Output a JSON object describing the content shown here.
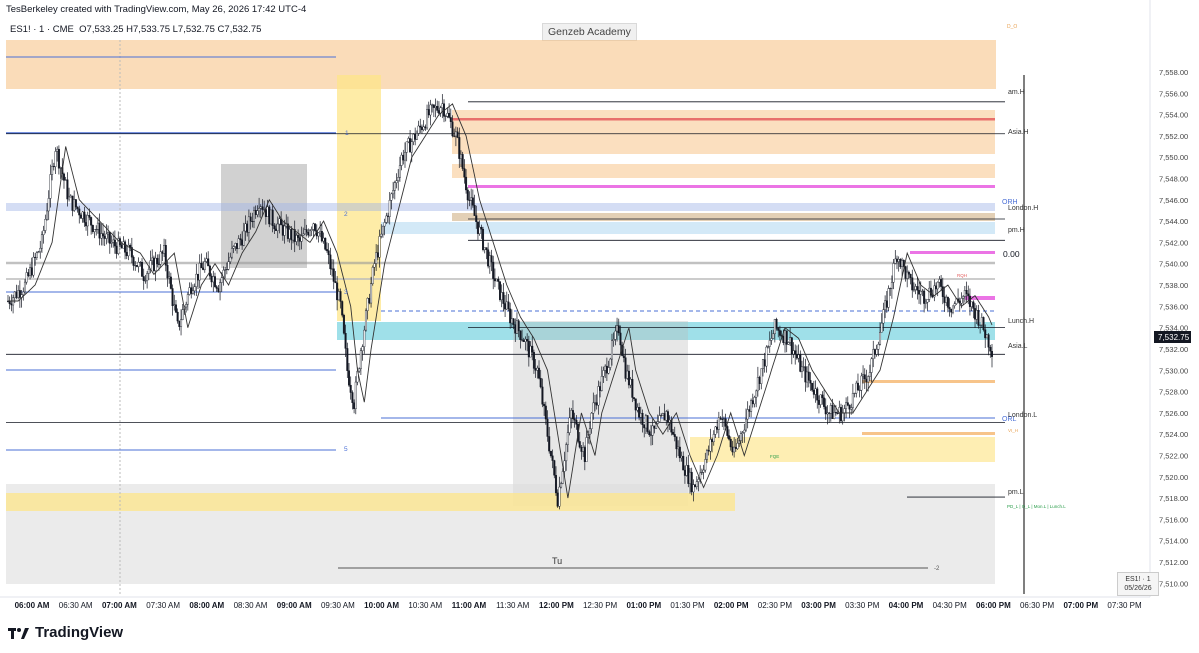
{
  "header": {
    "credit": "TesBerkeley created with TradingView.com, May 26, 2026 17:42 UTC-4",
    "symbol": "ES1! · 1 · CME",
    "ohlc": "O7,533.25  H7,533.75  L7,532.75  C7,532.75",
    "watermark": "Genzeb Academy",
    "brand": "TradingView"
  },
  "colors": {
    "candle": "#131722",
    "orange_zone": "#f7c48a",
    "yellow_zone": "#fde58a",
    "cyan_zone": "#7fd6e2",
    "gray_zone": "#b9b9b9",
    "magenta": "#e85ce0",
    "red": "#e45c5c",
    "blue_line": "#4a6fd6"
  },
  "chart_data": {
    "type": "candlestick",
    "timeframe": "1",
    "title": "ES1! · 1 · CME",
    "last_price_label": "7,532.75",
    "ylim": [
      7509,
      7561
    ],
    "y_ticks": [
      "7,558.00",
      "7,556.00",
      "7,554.00",
      "7,552.00",
      "7,550.00",
      "7,548.00",
      "7,546.00",
      "7,544.00",
      "7,542.00",
      "7,540.00",
      "7,538.00",
      "7,536.00",
      "7,534.00",
      "7,532.00",
      "7,530.00",
      "7,528.00",
      "7,526.00",
      "7,524.00",
      "7,522.00",
      "7,520.00",
      "7,518.00",
      "7,516.00",
      "7,514.00",
      "7,512.00",
      "7,510.00"
    ],
    "y_tick_values": [
      7558,
      7556,
      7554,
      7552,
      7550,
      7548,
      7546,
      7544,
      7542,
      7540,
      7538,
      7536,
      7534,
      7532,
      7530,
      7528,
      7526,
      7524,
      7522,
      7520,
      7518,
      7516,
      7514,
      7512,
      7510
    ],
    "x_ticks": [
      {
        "label": "06:00 AM",
        "bold": true
      },
      {
        "label": "06:30 AM",
        "bold": false
      },
      {
        "label": "07:00 AM",
        "bold": true
      },
      {
        "label": "07:30 AM",
        "bold": false
      },
      {
        "label": "08:00 AM",
        "bold": true
      },
      {
        "label": "08:30 AM",
        "bold": false
      },
      {
        "label": "09:00 AM",
        "bold": true
      },
      {
        "label": "09:30 AM",
        "bold": false
      },
      {
        "label": "10:00 AM",
        "bold": true
      },
      {
        "label": "10:30 AM",
        "bold": false
      },
      {
        "label": "11:00 AM",
        "bold": true
      },
      {
        "label": "11:30 AM",
        "bold": false
      },
      {
        "label": "12:00 PM",
        "bold": true
      },
      {
        "label": "12:30 PM",
        "bold": false
      },
      {
        "label": "01:00 PM",
        "bold": true
      },
      {
        "label": "01:30 PM",
        "bold": false
      },
      {
        "label": "02:00 PM",
        "bold": true
      },
      {
        "label": "02:30 PM",
        "bold": false
      },
      {
        "label": "03:00 PM",
        "bold": true
      },
      {
        "label": "03:30 PM",
        "bold": false
      },
      {
        "label": "04:00 PM",
        "bold": true
      },
      {
        "label": "04:30 PM",
        "bold": false
      },
      {
        "label": "06:00 PM",
        "bold": true
      },
      {
        "label": "06:30 PM",
        "bold": false
      },
      {
        "label": "07:00 PM",
        "bold": true
      },
      {
        "label": "07:30 PM",
        "bold": false
      }
    ],
    "price_path": [
      [
        0,
        7536.5
      ],
      [
        5,
        7538
      ],
      [
        10,
        7542
      ],
      [
        14,
        7551
      ],
      [
        18,
        7546
      ],
      [
        24,
        7544
      ],
      [
        30,
        7542
      ],
      [
        36,
        7541
      ],
      [
        40,
        7539
      ],
      [
        46,
        7541
      ],
      [
        50,
        7534
      ],
      [
        54,
        7538
      ],
      [
        58,
        7540
      ],
      [
        62,
        7538
      ],
      [
        66,
        7541
      ],
      [
        70,
        7543
      ],
      [
        74,
        7546
      ],
      [
        78,
        7544
      ],
      [
        82,
        7543
      ],
      [
        86,
        7542
      ],
      [
        90,
        7544
      ],
      [
        94,
        7541
      ],
      [
        98,
        7536
      ],
      [
        100,
        7530
      ],
      [
        102,
        7527
      ],
      [
        104,
        7532
      ],
      [
        108,
        7540
      ],
      [
        112,
        7545
      ],
      [
        116,
        7550
      ],
      [
        120,
        7552
      ],
      [
        124,
        7554
      ],
      [
        128,
        7555
      ],
      [
        132,
        7552
      ],
      [
        136,
        7546
      ],
      [
        140,
        7542
      ],
      [
        144,
        7538
      ],
      [
        148,
        7535
      ],
      [
        152,
        7533
      ],
      [
        156,
        7530
      ],
      [
        158,
        7526
      ],
      [
        160,
        7522
      ],
      [
        162,
        7518
      ],
      [
        164,
        7522
      ],
      [
        166,
        7526
      ],
      [
        170,
        7522
      ],
      [
        172,
        7526
      ],
      [
        176,
        7530
      ],
      [
        180,
        7534
      ],
      [
        182,
        7530
      ],
      [
        186,
        7526
      ],
      [
        190,
        7524
      ],
      [
        194,
        7526
      ],
      [
        198,
        7522
      ],
      [
        202,
        7519
      ],
      [
        206,
        7522
      ],
      [
        210,
        7526
      ],
      [
        214,
        7522
      ],
      [
        218,
        7526
      ],
      [
        222,
        7530
      ],
      [
        226,
        7534
      ],
      [
        230,
        7533
      ],
      [
        234,
        7530
      ],
      [
        238,
        7528
      ],
      [
        242,
        7526
      ],
      [
        246,
        7526
      ],
      [
        250,
        7528
      ],
      [
        254,
        7530
      ],
      [
        258,
        7535
      ],
      [
        262,
        7541
      ],
      [
        266,
        7538
      ],
      [
        270,
        7537
      ],
      [
        274,
        7538
      ],
      [
        278,
        7536
      ],
      [
        282,
        7537
      ],
      [
        286,
        7535
      ],
      [
        290,
        7532
      ]
    ],
    "horizontal_levels": [
      {
        "name": "am.H",
        "value": 7555.2,
        "color": "#131722"
      },
      {
        "name": "Asia.H",
        "value": 7552.2,
        "color": "#131722"
      },
      {
        "name": "London.H",
        "value": 7544.2,
        "color": "#131722"
      },
      {
        "name": "pm.H",
        "value": 7542.2,
        "color": "#131722"
      },
      {
        "name": "Lunch.H",
        "value": 7534.0,
        "color": "#131722"
      },
      {
        "name": "Asia.L",
        "value": 7531.5,
        "color": "#131722"
      },
      {
        "name": "London.L",
        "value": 7525.1,
        "color": "#131722"
      },
      {
        "name": "pm.L",
        "value": 7518.1,
        "color": "#131722"
      }
    ],
    "level_labels": {
      "am_h": "am.H",
      "asia_h": "Asia.H",
      "orh": "ORH",
      "london_h": "London.H",
      "pm_h": "pm.H",
      "zero": "0.00",
      "lunch_h": "Lunch.H",
      "asia_l": "Asia.L",
      "orl": "ORL",
      "london_l": "London.L",
      "pm_l": "pm.L",
      "pd_l": "PD_L | O_L | Mon.L | Lunch.L",
      "tu": "Tu",
      "fib_1": "1",
      "fib_2": "2",
      "fib_3": "3",
      "fib_5": "5",
      "fib_neg2": "-2",
      "top_tag": "D_O",
      "rqh": "RQH",
      "fqe": "FQE",
      "fvg_tag": "VI_H"
    },
    "corner_box": {
      "line1": "ES1! · 1",
      "line2": "05/26/26"
    }
  }
}
